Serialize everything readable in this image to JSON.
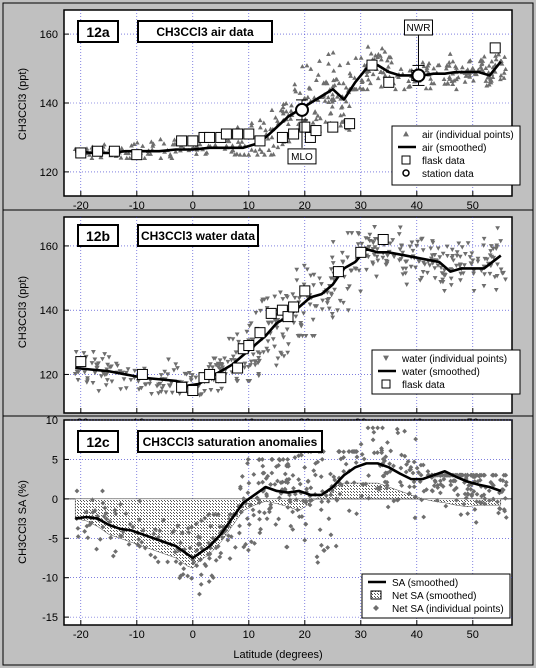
{
  "x_axis": {
    "label": "Latitude  (degrees)",
    "ticks": [
      -20,
      -10,
      0,
      10,
      20,
      30,
      40,
      50
    ],
    "range": [
      -23,
      57
    ]
  },
  "colors": {
    "background": "#c0c0c0",
    "plot_bg": "#ffffff",
    "points": "#6e6e6e",
    "smooth_line": "#000000",
    "grid": "#3333cc"
  },
  "panels": [
    {
      "id": "12a",
      "tag": "12a",
      "title": "CH3CCl3  air data",
      "ylabel": "CH3CCl3  (ppt)",
      "yticks": [
        120,
        140,
        160
      ],
      "ylim": [
        113,
        167
      ],
      "legend": [
        {
          "symbol": "triangle-up",
          "label": "air (individual points)"
        },
        {
          "symbol": "line",
          "label": "air (smoothed)"
        },
        {
          "symbol": "square",
          "label": "flask data"
        },
        {
          "symbol": "circle",
          "label": "station data"
        }
      ],
      "annotations": [
        {
          "text": "NWR",
          "x": 40.3,
          "y": 148
        },
        {
          "text": "MLO",
          "x": 19.5,
          "y": 138
        }
      ]
    },
    {
      "id": "12b",
      "tag": "12b",
      "title": "CH3CCl3 water data",
      "ylabel": "CH3CCl3  (ppt)",
      "yticks": [
        120,
        140,
        160
      ],
      "ylim": [
        108,
        169
      ],
      "legend": [
        {
          "symbol": "triangle-down",
          "label": "water (individual points)"
        },
        {
          "symbol": "line",
          "label": "water (smoothed)"
        },
        {
          "symbol": "square",
          "label": "flask data"
        }
      ],
      "annotations": []
    },
    {
      "id": "12c",
      "tag": "12c",
      "title": "CH3CCl3 saturation anomalies",
      "ylabel": "CH3CCl3  SA  (%)",
      "yticks": [
        -15,
        -10,
        -5,
        0,
        5,
        10
      ],
      "ylim": [
        -16,
        10
      ],
      "legend": [
        {
          "symbol": "line",
          "label": "SA (smoothed)"
        },
        {
          "symbol": "hatch",
          "label": "Net SA (smoothed)"
        },
        {
          "symbol": "diamond",
          "label": "Net SA (individual points)"
        }
      ],
      "annotations": []
    }
  ],
  "chart_data": [
    {
      "type": "scatter",
      "panel": "12a",
      "title": "CH3CCl3  air data",
      "xlabel": "Latitude  (degrees)",
      "ylabel": "CH3CCl3  (ppt)",
      "xlim": [
        -23,
        57
      ],
      "ylim": [
        113,
        167
      ],
      "series": [
        {
          "name": "air (smoothed)",
          "kind": "line",
          "x": [
            -21,
            -18,
            -15,
            -12,
            -9,
            -6,
            -3,
            0,
            3,
            6,
            9,
            11,
            13,
            15,
            17,
            19,
            21,
            23,
            25,
            27,
            29,
            31,
            33,
            35,
            37,
            39,
            41,
            43,
            45,
            47,
            49,
            51,
            53,
            55
          ],
          "y": [
            126,
            125.5,
            125.5,
            126,
            126,
            126,
            126.5,
            126.5,
            127,
            127,
            127,
            128,
            130,
            133,
            136,
            138,
            140,
            142,
            144,
            141,
            146,
            150,
            151,
            149,
            148,
            148,
            148,
            148.5,
            148.5,
            149,
            149,
            149,
            148,
            152
          ]
        },
        {
          "name": "flask data",
          "kind": "square",
          "x": [
            -20,
            -17,
            -14,
            -10,
            -2,
            0,
            2,
            3,
            5,
            6,
            8,
            10,
            12,
            16,
            18,
            20,
            21,
            22,
            25,
            28,
            32,
            35,
            40,
            54
          ],
          "y": [
            125.5,
            126,
            126,
            125,
            129,
            129,
            130,
            130,
            130,
            131,
            131,
            131,
            129,
            130,
            131,
            133,
            130,
            132,
            133,
            134,
            151,
            146,
            148,
            156
          ]
        },
        {
          "name": "station data",
          "kind": "circle",
          "x": [
            19.5,
            40.3
          ],
          "y": [
            138,
            148
          ]
        }
      ],
      "scatter_clouds": [
        {
          "name": "air (individual points)",
          "segments": [
            [
              -21,
              -12,
              124,
              130,
              30
            ],
            [
              -12,
              8,
              124,
              131,
              70
            ],
            [
              8,
              18,
              125,
              142,
              60
            ],
            [
              18,
              28,
              132,
              158,
              90
            ],
            [
              28,
              34,
              144,
              160,
              50
            ],
            [
              34,
              56,
              144,
              156,
              140
            ]
          ]
        }
      ],
      "legend": "lower-right"
    },
    {
      "type": "scatter",
      "panel": "12b",
      "title": "CH3CCl3 water data",
      "xlabel": "Latitude  (degrees)",
      "ylabel": "CH3CCl3  (ppt)",
      "xlim": [
        -23,
        57
      ],
      "ylim": [
        108,
        169
      ],
      "series": [
        {
          "name": "water (smoothed)",
          "kind": "line",
          "x": [
            -21,
            -18,
            -15,
            -12,
            -9,
            -6,
            -3,
            -1,
            1,
            3,
            5,
            7,
            9,
            11,
            13,
            15,
            17,
            19,
            21,
            23,
            25,
            27,
            29,
            31,
            33,
            35,
            38,
            41,
            44,
            46,
            48,
            50,
            52,
            55
          ],
          "y": [
            122,
            121.5,
            121,
            120,
            119,
            118.5,
            118,
            116.5,
            117,
            119,
            121,
            123,
            126,
            129,
            132,
            136,
            138,
            141,
            144,
            145,
            148,
            153,
            155,
            159,
            158,
            158,
            157,
            156,
            155,
            152,
            153,
            153,
            153,
            157
          ]
        },
        {
          "name": "flask data",
          "kind": "square",
          "x": [
            -20,
            -9,
            -2,
            0,
            2,
            3,
            5,
            8,
            9,
            10,
            12,
            14,
            16,
            17,
            18,
            20,
            26,
            30,
            34
          ],
          "y": [
            124,
            120,
            116,
            115,
            119,
            120,
            119,
            122,
            128,
            129,
            133,
            139,
            140,
            138,
            141,
            146,
            152,
            158,
            162
          ]
        }
      ],
      "scatter_clouds": [
        {
          "name": "water (individual points)",
          "segments": [
            [
              -21,
              -2,
              113,
              127,
              90
            ],
            [
              -2,
              6,
              111,
              125,
              50
            ],
            [
              6,
              18,
              118,
              146,
              90
            ],
            [
              18,
              30,
              132,
              164,
              90
            ],
            [
              30,
              56,
              146,
              166,
              170
            ]
          ]
        }
      ],
      "legend": "lower-right"
    },
    {
      "type": "area",
      "panel": "12c",
      "title": "CH3CCl3 saturation anomalies",
      "xlabel": "Latitude  (degrees)",
      "ylabel": "CH3CCl3  SA  (%)",
      "xlim": [
        -23,
        57
      ],
      "ylim": [
        -16,
        10
      ],
      "series": [
        {
          "name": "SA (smoothed)",
          "kind": "line",
          "x": [
            -21,
            -19,
            -17,
            -15,
            -13,
            -11,
            -9,
            -7,
            -5,
            -3,
            -1,
            0,
            1,
            3,
            5,
            7,
            9,
            11,
            13,
            15,
            17,
            19,
            21,
            23,
            25,
            27,
            29,
            31,
            33,
            35,
            37,
            39,
            41,
            43,
            45,
            47,
            49,
            51,
            53,
            55
          ],
          "y": [
            -2.5,
            -2.3,
            -2.5,
            -3.3,
            -3.8,
            -4,
            -4.5,
            -5,
            -5.5,
            -6,
            -7,
            -7.5,
            -7,
            -6,
            -4.5,
            -2.5,
            -0.5,
            0.5,
            1.5,
            1,
            0.8,
            1,
            0.5,
            0.5,
            1.5,
            3,
            4,
            4.5,
            4.5,
            4,
            3.2,
            2.5,
            2.5,
            3,
            3.5,
            2.8,
            2.2,
            1.8,
            1.5,
            1
          ]
        },
        {
          "name": "Net SA (smoothed)",
          "kind": "hatch",
          "x": [
            -21,
            -19,
            -17,
            -15,
            -13,
            -11,
            -9,
            -7,
            -5,
            -3,
            -1,
            0,
            1,
            3,
            5,
            7,
            9,
            11,
            13,
            15,
            17,
            19,
            21,
            23,
            25,
            27,
            29,
            31,
            33,
            35,
            37,
            39,
            41,
            43,
            45,
            47,
            49,
            51,
            53,
            55
          ],
          "y": [
            -2.5,
            -2.8,
            -3.5,
            -4.5,
            -5,
            -5.5,
            -6,
            -6.5,
            -7,
            -7.5,
            -8.5,
            -8.8,
            -8,
            -7,
            -5.5,
            -3.5,
            -1.5,
            -0.8,
            -0.3,
            -0.6,
            -1,
            -1.5,
            -0.5,
            0.5,
            1.5,
            2,
            2,
            2,
            2,
            1.5,
            1,
            0.5,
            0,
            -0.3,
            -0.5,
            -0.8,
            -1,
            -0.8,
            -0.8,
            -0.8
          ]
        }
      ],
      "scatter_clouds": [
        {
          "name": "Net SA (individual points)",
          "segments": [
            [
              -21,
              -3,
              -8,
              1,
              60
            ],
            [
              -3,
              8,
              -15,
              -2,
              80
            ],
            [
              8,
              18,
              -10,
              5,
              100
            ],
            [
              18,
              30,
              -15,
              6,
              90
            ],
            [
              30,
              42,
              -5,
              9,
              80
            ],
            [
              42,
              56,
              -8,
              3,
              140
            ]
          ]
        }
      ],
      "legend": "lower-right"
    }
  ]
}
